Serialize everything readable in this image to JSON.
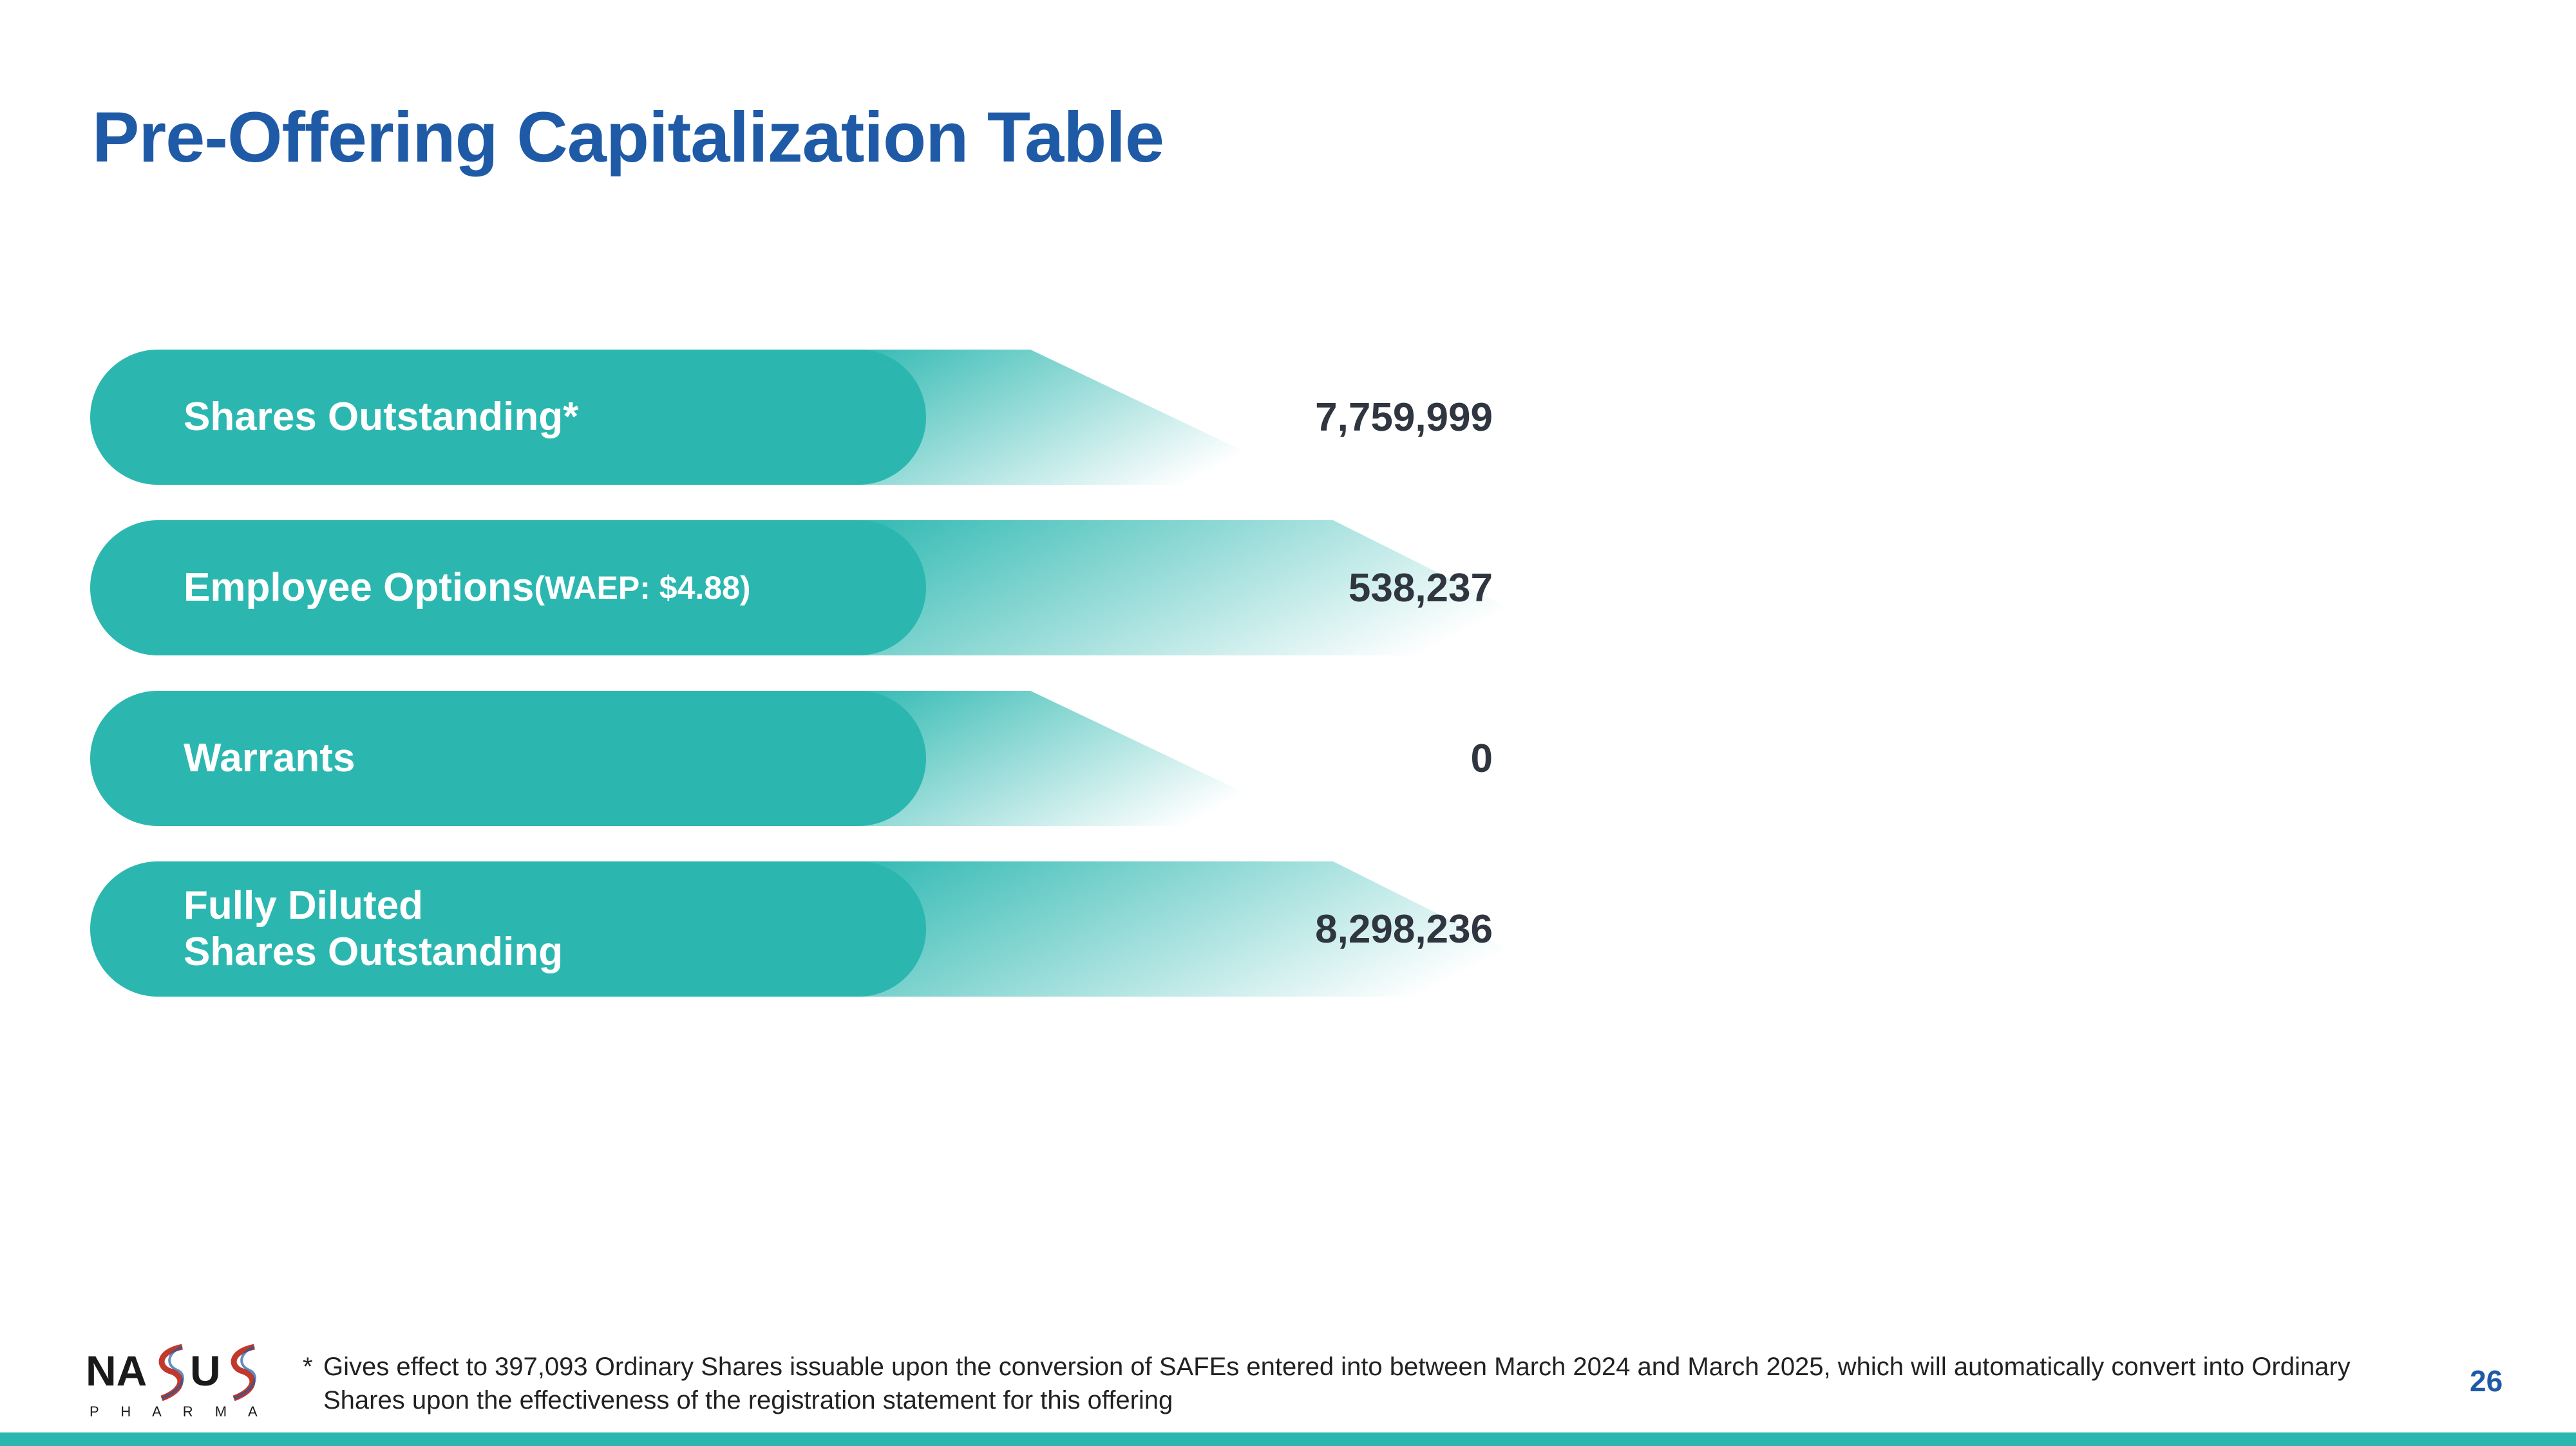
{
  "slide": {
    "title": "Pre-Offering Capitalization Table",
    "page_number": "26",
    "accent_color": "#2bb7b0",
    "title_color": "#1f5aa6"
  },
  "rows": [
    {
      "label": "Shares Outstanding*",
      "value": "7,759,999"
    },
    {
      "label": "Employee Options ",
      "label_suffix": "(WAEP: $4.88)",
      "value": "538,237"
    },
    {
      "label": "Warrants",
      "value": "0"
    },
    {
      "label": "Fully Diluted\nShares Outstanding",
      "value": "8,298,236"
    }
  ],
  "footnote": {
    "marker": "*",
    "text": "Gives effect to 397,093 Ordinary Shares issuable upon the conversion of SAFEs entered into between March 2024 and March 2025, which will automatically convert into Ordinary Shares upon the effectiveness of the registration statement for this offering"
  },
  "logo": {
    "text_left": "NA",
    "text_right": "U",
    "sub": "P H A R M A",
    "icon": "helix-s-logo-icon"
  }
}
